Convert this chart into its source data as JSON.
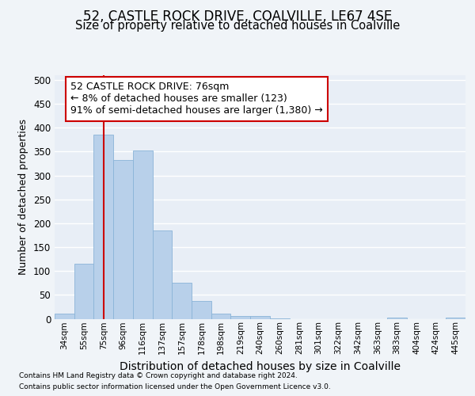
{
  "title1": "52, CASTLE ROCK DRIVE, COALVILLE, LE67 4SE",
  "title2": "Size of property relative to detached houses in Coalville",
  "xlabel": "Distribution of detached houses by size in Coalville",
  "ylabel": "Number of detached properties",
  "footnote1": "Contains HM Land Registry data © Crown copyright and database right 2024.",
  "footnote2": "Contains public sector information licensed under the Open Government Licence v3.0.",
  "categories": [
    "34sqm",
    "55sqm",
    "75sqm",
    "96sqm",
    "116sqm",
    "137sqm",
    "157sqm",
    "178sqm",
    "198sqm",
    "219sqm",
    "240sqm",
    "260sqm",
    "281sqm",
    "301sqm",
    "322sqm",
    "342sqm",
    "363sqm",
    "383sqm",
    "404sqm",
    "424sqm",
    "445sqm"
  ],
  "values": [
    10,
    115,
    385,
    333,
    353,
    185,
    75,
    38,
    11,
    6,
    5,
    1,
    0,
    0,
    0,
    0,
    0,
    3,
    0,
    0,
    3
  ],
  "bar_color": "#b8d0ea",
  "bar_edge_color": "#8ab4d8",
  "property_line_x": 2.0,
  "annotation_text_line1": "52 CASTLE ROCK DRIVE: 76sqm",
  "annotation_text_line2": "← 8% of detached houses are smaller (123)",
  "annotation_text_line3": "91% of semi-detached houses are larger (1,380) →",
  "annotation_box_color": "#ffffff",
  "annotation_box_edge": "#cc0000",
  "vline_color": "#cc0000",
  "ylim": [
    0,
    510
  ],
  "yticks": [
    0,
    50,
    100,
    150,
    200,
    250,
    300,
    350,
    400,
    450,
    500
  ],
  "background_color": "#f0f4f8",
  "plot_bg_color": "#e8eef6",
  "grid_color": "#ffffff",
  "title1_fontsize": 12,
  "title2_fontsize": 10.5,
  "xlabel_fontsize": 10,
  "ylabel_fontsize": 9,
  "annot_fontsize": 9
}
